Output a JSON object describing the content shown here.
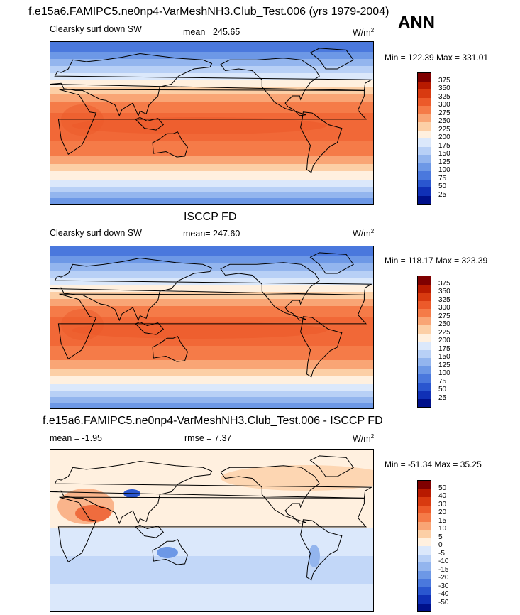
{
  "season": "ANN",
  "panels": [
    {
      "title": "f.e15a6.FAMIPC5.ne0np4-VarMeshNH3.Club_Test.006 (yrs 1979-2004)",
      "left_label": "Clearsky surf down SW",
      "center_label": "mean= 245.65",
      "units": "W/m",
      "units_exp": "2",
      "minmax": "Min = 122.39 Max = 331.01",
      "colorbar": {
        "labels": [
          "375",
          "350",
          "325",
          "300",
          "275",
          "250",
          "225",
          "200",
          "175",
          "150",
          "125",
          "100",
          "75",
          "50",
          "25"
        ],
        "colors": [
          "#7f0000",
          "#b81a00",
          "#d83a10",
          "#ec5a2a",
          "#f57b48",
          "#f9a575",
          "#fccfa6",
          "#fff0df",
          "#dbe8fb",
          "#b8d0f6",
          "#93b5ee",
          "#6d98e6",
          "#4a78dd",
          "#2a56cf",
          "#1030b6",
          "#00108a"
        ]
      }
    },
    {
      "title": "ISCCP FD",
      "left_label": "Clearsky surf down SW",
      "center_label": "mean= 247.60",
      "units": "W/m",
      "units_exp": "2",
      "minmax": "Min = 118.17 Max = 323.39",
      "colorbar": {
        "labels": [
          "375",
          "350",
          "325",
          "300",
          "275",
          "250",
          "225",
          "200",
          "175",
          "150",
          "125",
          "100",
          "75",
          "50",
          "25"
        ],
        "colors": [
          "#7f0000",
          "#b81a00",
          "#d83a10",
          "#ec5a2a",
          "#f57b48",
          "#f9a575",
          "#fccfa6",
          "#fff0df",
          "#dbe8fb",
          "#b8d0f6",
          "#93b5ee",
          "#6d98e6",
          "#4a78dd",
          "#2a56cf",
          "#1030b6",
          "#00108a"
        ]
      }
    },
    {
      "title": "f.e15a6.FAMIPC5.ne0np4-VarMeshNH3.Club_Test.006 - ISCCP FD",
      "left_label": "mean =  -1.95",
      "center_label": "rmse =   7.37",
      "units": "W/m",
      "units_exp": "2",
      "minmax": "Min = -51.34 Max =  35.25",
      "colorbar": {
        "labels": [
          "50",
          "40",
          "30",
          "20",
          "15",
          "10",
          "5",
          "0",
          "-5",
          "-10",
          "-15",
          "-20",
          "-30",
          "-40",
          "-50"
        ],
        "colors": [
          "#7f0000",
          "#b81a00",
          "#d83a10",
          "#ec5a2a",
          "#f57b48",
          "#f9a575",
          "#fccfa6",
          "#fff0df",
          "#dbe8fb",
          "#b8d0f6",
          "#93b5ee",
          "#6d98e6",
          "#4a78dd",
          "#2a56cf",
          "#1030b6",
          "#00108a"
        ]
      }
    }
  ]
}
